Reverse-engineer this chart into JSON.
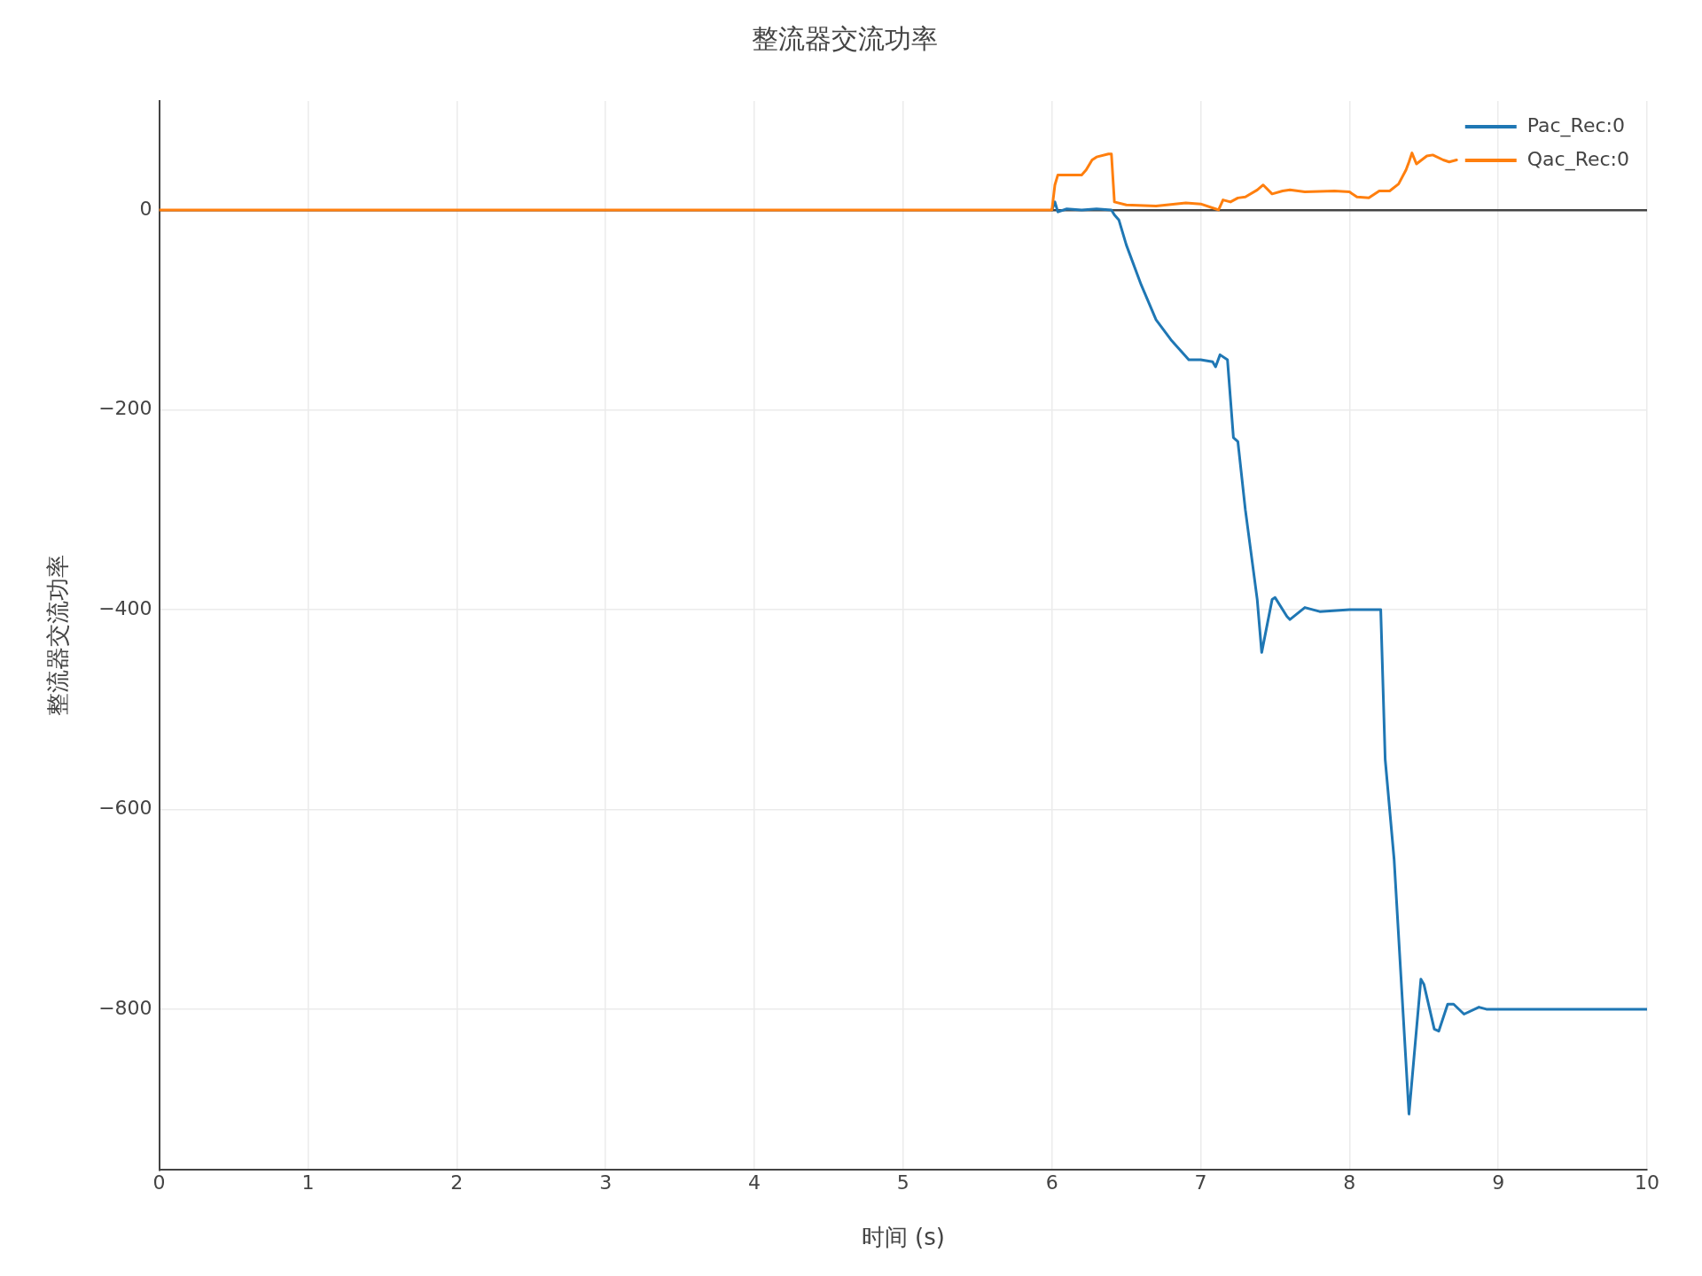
{
  "chart_data": {
    "type": "line",
    "title": "整流器交流功率",
    "xlabel": "时间 (s)",
    "ylabel": "整流器交流功率",
    "xlim": [
      0,
      10
    ],
    "xticks": [
      0,
      1,
      2,
      3,
      4,
      5,
      6,
      7,
      8,
      9,
      10
    ],
    "ylim": [
      -961,
      109
    ],
    "yticks": [
      {
        "value": -800,
        "label": "−800"
      },
      {
        "value": -600,
        "label": "−600"
      },
      {
        "value": -400,
        "label": "−400"
      },
      {
        "value": -200,
        "label": "−200"
      },
      0
    ],
    "grid": true,
    "legend": "top right",
    "line_style": "solid",
    "marker": "none",
    "series": [
      {
        "name": "Pac_Rec:0",
        "color": "#1f77b4",
        "x": [
          6,
          6.02,
          6.04,
          6.1,
          6.2,
          6.3,
          6.4,
          6.42,
          6.45,
          6.5,
          6.6,
          6.7,
          6.8,
          6.92,
          7.0,
          7.08,
          7.1,
          7.13,
          7.18,
          7.22,
          7.25,
          7.3,
          7.38,
          7.41,
          7.48,
          7.5,
          7.58,
          7.6,
          7.7,
          7.8,
          8.0,
          8.21,
          8.24,
          8.3,
          8.4,
          8.48,
          8.5,
          8.57,
          8.6,
          8.66,
          8.7,
          8.77,
          8.87,
          8.92,
          9.5,
          10
        ],
        "values": [
          0,
          8,
          -2,
          1,
          0,
          1,
          0,
          -5,
          -10,
          -35,
          -75,
          -110,
          -130,
          -150,
          -150,
          -152,
          -157,
          -145,
          -150,
          -228,
          -232,
          -300,
          -390,
          -443,
          -390,
          -388,
          -407,
          -410,
          -398,
          -402,
          -400,
          -400,
          -550,
          -650,
          -905,
          -770,
          -775,
          -820,
          -822,
          -795,
          -795,
          -805,
          -798,
          -800,
          -800,
          -800
        ]
      },
      {
        "name": "Qac_Rec:0",
        "color": "#ff7f0e",
        "x": [
          0,
          1,
          2,
          3,
          4,
          5,
          6,
          6.02,
          6.04,
          6.2,
          6.23,
          6.27,
          6.3,
          6.38,
          6.4,
          6.42,
          6.5,
          6.7,
          6.9,
          7.0,
          7.1,
          7.12,
          7.15,
          7.2,
          7.25,
          7.3,
          7.38,
          7.42,
          7.48,
          7.55,
          7.6,
          7.7,
          7.9,
          8.0,
          8.05,
          8.13,
          8.2,
          8.27,
          8.33,
          8.38,
          8.4,
          8.42,
          8.45,
          8.52,
          8.56,
          8.63,
          8.67,
          8.72
        ],
        "values": [
          0,
          0,
          0,
          0,
          0,
          0,
          0,
          25,
          35,
          35,
          40,
          50,
          53,
          56,
          56,
          8,
          5,
          4,
          7,
          6,
          1,
          0,
          10,
          8,
          12,
          13,
          20,
          25,
          16,
          19,
          20,
          18,
          19,
          18,
          13,
          12,
          19,
          19,
          26,
          40,
          48,
          57,
          46,
          54,
          55,
          50,
          48,
          50
        ]
      }
    ]
  }
}
